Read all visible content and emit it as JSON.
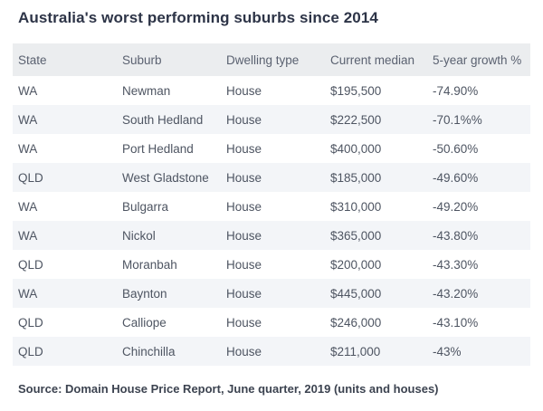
{
  "title": "Australia's worst performing suburbs since 2014",
  "source_note": "Source: Domain House Price Report, June quarter, 2019 (units and houses)",
  "colors": {
    "title_text": "#2d3447",
    "header_background": "#ebedef",
    "header_text": "#5a6170",
    "row_stripe": "#f3f5f8",
    "cell_text": "#4e5562",
    "source_text": "#3c4350",
    "page_background": "#ffffff"
  },
  "chart_data": {
    "type": "table",
    "title": "Australia's worst performing suburbs since 2014",
    "columns": [
      "State",
      "Suburb",
      "Dwelling type",
      "Current median",
      "5-year growth %"
    ],
    "rows": [
      [
        "WA",
        "Newman",
        "House",
        "$195,500",
        "-74.90%"
      ],
      [
        "WA",
        "South Hedland",
        "House",
        "$222,500",
        "-70.1%%"
      ],
      [
        "WA",
        "Port Hedland",
        "House",
        "$400,000",
        "-50.60%"
      ],
      [
        "QLD",
        "West Gladstone",
        "House",
        "$185,000",
        "-49.60%"
      ],
      [
        "WA",
        "Bulgarra",
        "House",
        "$310,000",
        "-49.20%"
      ],
      [
        "WA",
        "Nickol",
        "House",
        "$365,000",
        "-43.80%"
      ],
      [
        "QLD",
        "Moranbah",
        "House",
        "$200,000",
        "-43.30%"
      ],
      [
        "WA",
        "Baynton",
        "House",
        "$445,000",
        "-43.20%"
      ],
      [
        "QLD",
        "Calliope",
        "House",
        "$246,000",
        "-43.10%"
      ],
      [
        "QLD",
        "Chinchilla",
        "House",
        "$211,000",
        "-43%"
      ]
    ],
    "numeric_values": {
      "current_median_aud": [
        195500,
        222500,
        400000,
        185000,
        310000,
        365000,
        200000,
        445000,
        246000,
        211000
      ],
      "five_year_growth_pct": [
        -74.9,
        -70.1,
        -50.6,
        -49.6,
        -49.2,
        -43.8,
        -43.3,
        -43.2,
        -43.1,
        -43
      ]
    },
    "layout_hints": {
      "striped_rows": "even rows shaded light blue-gray",
      "header_shaded": true,
      "grid": false
    }
  }
}
